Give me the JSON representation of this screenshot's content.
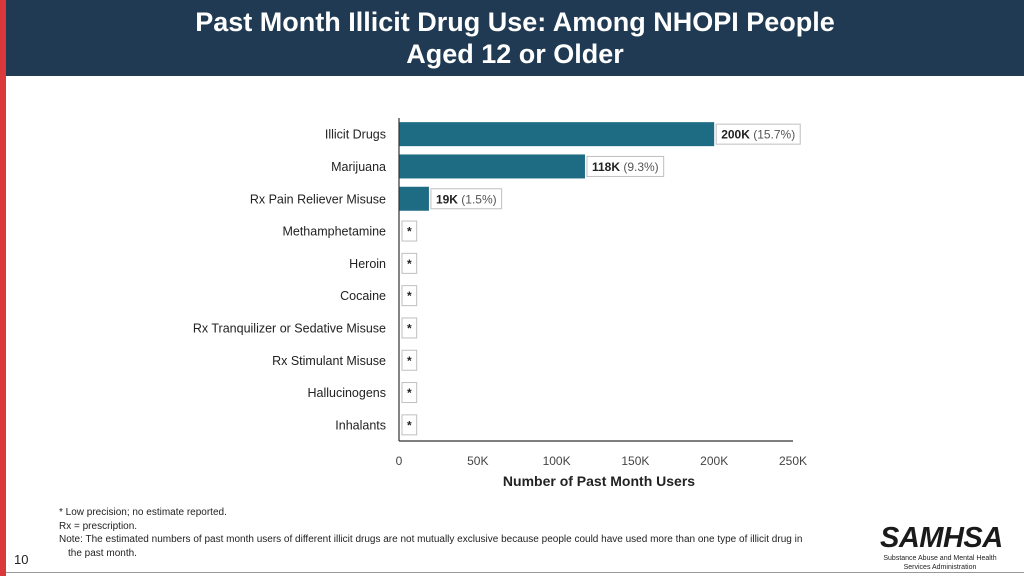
{
  "header": {
    "title_line1": "Past Month Illicit Drug Use: Among NHOPI People",
    "title_line2": "Aged 12 or Older"
  },
  "chart_data": {
    "type": "bar",
    "orientation": "horizontal",
    "categories": [
      "Illicit Drugs",
      "Marijuana",
      "Rx Pain Reliever Misuse",
      "Methamphetamine",
      "Heroin",
      "Cocaine",
      "Rx Tranquilizer or Sedative Misuse",
      "Rx Stimulant Misuse",
      "Hallucinogens",
      "Inhalants"
    ],
    "values": [
      200000,
      118000,
      19000,
      null,
      null,
      null,
      null,
      null,
      null,
      null
    ],
    "value_labels": [
      "200K",
      "118K",
      "19K",
      "*",
      "*",
      "*",
      "*",
      "*",
      "*",
      "*"
    ],
    "percent_labels": [
      "(15.7%)",
      "(9.3%)",
      "(1.5%)",
      "",
      "",
      "",
      "",
      "",
      "",
      ""
    ],
    "xlabel": "Number of Past Month Users",
    "ylabel": "",
    "xlim": [
      0,
      250000
    ],
    "xticks": [
      0,
      50000,
      100000,
      150000,
      200000,
      250000
    ],
    "xtick_labels": [
      "0",
      "50K",
      "100K",
      "150K",
      "200K",
      "250K"
    ],
    "bar_color": "#1e6b84"
  },
  "notes": {
    "line1": "* Low precision; no estimate reported.",
    "line2": "Rx = prescription.",
    "line3": "Note: The estimated numbers of past month users of different illicit drugs are not mutually exclusive because people could have used more than one type of illicit drug in",
    "line4": "the past month."
  },
  "page_number": "10",
  "logo": {
    "word": "SAMHSA",
    "sub1": "Substance Abuse and Mental Health",
    "sub2": "Services Administration"
  },
  "colors": {
    "header_bg": "#1f3a52",
    "accent": "#d9393a",
    "bar": "#1e6b84"
  }
}
